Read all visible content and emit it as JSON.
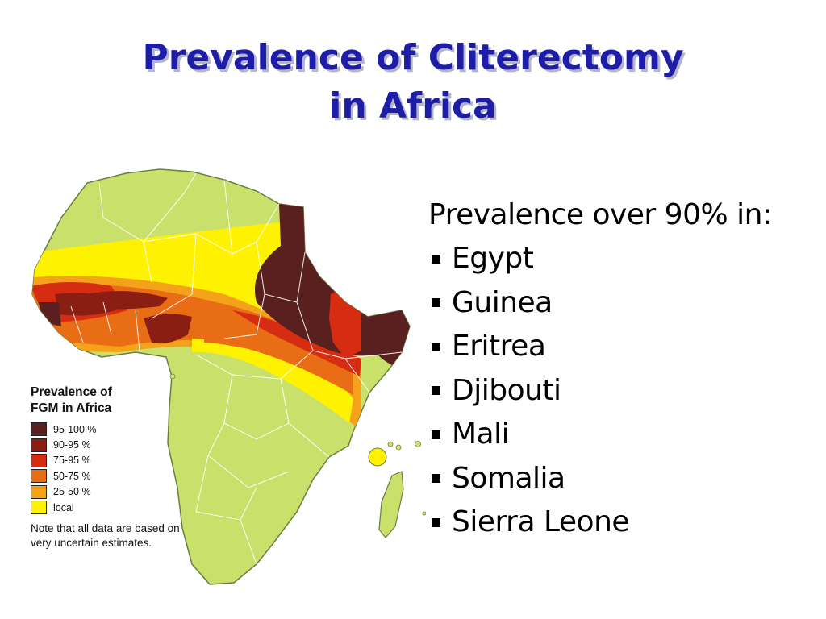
{
  "title": {
    "line1": "Prevalence of Cliterectomy",
    "line2": "in Africa"
  },
  "map": {
    "legend": {
      "title_line1": "Prevalence of",
      "title_line2": "FGM in Africa",
      "items": [
        {
          "label": "95-100 %",
          "color": "#5a2020"
        },
        {
          "label": "90-95 %",
          "color": "#8a1e12"
        },
        {
          "label": "75-95 %",
          "color": "#d62c12"
        },
        {
          "label": "50-75 %",
          "color": "#e86d14"
        },
        {
          "label": "25-50 %",
          "color": "#f3a21a"
        },
        {
          "label": "local",
          "color": "#fff200"
        }
      ],
      "note": "Note that all data are based on very uncertain estimates."
    },
    "colors": {
      "land": "#c9e16a",
      "border": "#ffffff",
      "outline": "#6d7d44"
    }
  },
  "bullets": {
    "heading": "Prevalence over 90% in:",
    "items": [
      "Egypt",
      "Guinea",
      "Eritrea",
      "Djibouti",
      "Mali",
      "Somalia",
      "Sierra Leone"
    ]
  }
}
